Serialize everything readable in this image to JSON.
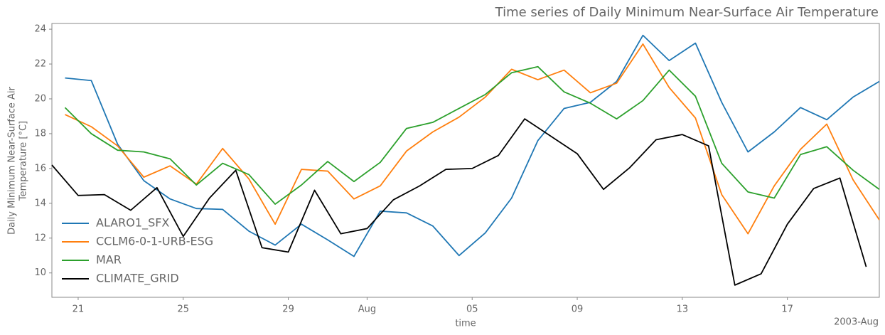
{
  "chart_data": {
    "type": "line",
    "title": "Time series of Daily Minimum Near-Surface Air Temperature",
    "xlabel": "time",
    "ylabel": [
      "Daily Minimum Near-Surface Air",
      "Temperature [°C]"
    ],
    "x_offset_label": "2003-Aug",
    "xlim": [
      "2003-07-20T00:00",
      "2003-08-20T12:00"
    ],
    "xticks": [
      {
        "value": "2003-07-21T00:00",
        "label": "21"
      },
      {
        "value": "2003-07-25T00:00",
        "label": "25"
      },
      {
        "value": "2003-07-29T00:00",
        "label": "29"
      },
      {
        "value": "2003-08-01T00:00",
        "label": "Aug"
      },
      {
        "value": "2003-08-05T00:00",
        "label": "05"
      },
      {
        "value": "2003-08-09T00:00",
        "label": "09"
      },
      {
        "value": "2003-08-13T00:00",
        "label": "13"
      },
      {
        "value": "2003-08-17T00:00",
        "label": "17"
      }
    ],
    "ylim": [
      8.6,
      24.33
    ],
    "yticks": [
      10,
      12,
      14,
      16,
      18,
      20,
      22,
      24
    ],
    "grid": false,
    "legend": "lower left",
    "series": [
      {
        "name": "ALARO1_SFX",
        "color": "#1f77b4",
        "x": [
          "2003-07-20T12:00",
          "2003-07-21T12:00",
          "2003-07-22T12:00",
          "2003-07-23T12:00",
          "2003-07-24T12:00",
          "2003-07-25T12:00",
          "2003-07-26T12:00",
          "2003-07-27T12:00",
          "2003-07-28T12:00",
          "2003-07-29T12:00",
          "2003-07-30T12:00",
          "2003-07-31T12:00",
          "2003-08-01T12:00",
          "2003-08-02T12:00",
          "2003-08-03T12:00",
          "2003-08-04T12:00",
          "2003-08-05T12:00",
          "2003-08-06T12:00",
          "2003-08-07T12:00",
          "2003-08-08T12:00",
          "2003-08-09T12:00",
          "2003-08-10T12:00",
          "2003-08-11T12:00",
          "2003-08-12T12:00",
          "2003-08-13T12:00",
          "2003-08-14T12:00",
          "2003-08-15T12:00",
          "2003-08-16T12:00",
          "2003-08-17T12:00",
          "2003-08-18T12:00",
          "2003-08-19T12:00",
          "2003-08-20T12:00"
        ],
        "values": [
          21.2,
          21.05,
          17.4,
          15.3,
          14.25,
          13.7,
          13.65,
          12.4,
          11.6,
          12.8,
          11.9,
          10.95,
          13.55,
          13.45,
          12.7,
          11.0,
          12.3,
          14.3,
          17.6,
          19.45,
          19.8,
          21.0,
          23.65,
          22.2,
          23.2,
          19.8,
          16.95,
          18.1,
          19.5,
          18.8,
          20.1,
          21.0
        ]
      },
      {
        "name": "CCLM6-0-1-URB-ESG",
        "color": "#ff7f0e",
        "x": [
          "2003-07-20T12:00",
          "2003-07-21T12:00",
          "2003-07-22T12:00",
          "2003-07-23T12:00",
          "2003-07-24T12:00",
          "2003-07-25T12:00",
          "2003-07-26T12:00",
          "2003-07-27T12:00",
          "2003-07-28T12:00",
          "2003-07-29T12:00",
          "2003-07-30T12:00",
          "2003-07-31T12:00",
          "2003-08-01T12:00",
          "2003-08-02T12:00",
          "2003-08-03T12:00",
          "2003-08-04T12:00",
          "2003-08-05T12:00",
          "2003-08-06T12:00",
          "2003-08-07T12:00",
          "2003-08-08T12:00",
          "2003-08-09T12:00",
          "2003-08-10T12:00",
          "2003-08-11T12:00",
          "2003-08-12T12:00",
          "2003-08-13T12:00",
          "2003-08-14T12:00",
          "2003-08-15T12:00",
          "2003-08-16T12:00",
          "2003-08-17T12:00",
          "2003-08-18T12:00",
          "2003-08-19T12:00",
          "2003-08-20T12:00"
        ],
        "values": [
          19.1,
          18.4,
          17.3,
          15.5,
          16.15,
          15.1,
          17.15,
          15.4,
          12.8,
          15.95,
          15.85,
          14.25,
          15.0,
          17.0,
          18.1,
          18.95,
          20.1,
          21.7,
          21.1,
          21.65,
          20.35,
          20.9,
          23.15,
          20.65,
          18.9,
          14.5,
          12.25,
          15.0,
          17.1,
          18.55,
          15.35,
          13.05
        ]
      },
      {
        "name": "MAR",
        "color": "#2ca02c",
        "x": [
          "2003-07-20T12:00",
          "2003-07-21T12:00",
          "2003-07-22T12:00",
          "2003-07-23T12:00",
          "2003-07-24T12:00",
          "2003-07-25T12:00",
          "2003-07-26T12:00",
          "2003-07-27T12:00",
          "2003-07-28T12:00",
          "2003-07-29T12:00",
          "2003-07-30T12:00",
          "2003-07-31T12:00",
          "2003-08-01T12:00",
          "2003-08-02T12:00",
          "2003-08-03T12:00",
          "2003-08-04T12:00",
          "2003-08-05T12:00",
          "2003-08-06T12:00",
          "2003-08-07T12:00",
          "2003-08-08T12:00",
          "2003-08-09T12:00",
          "2003-08-10T12:00",
          "2003-08-11T12:00",
          "2003-08-12T12:00",
          "2003-08-13T12:00",
          "2003-08-14T12:00",
          "2003-08-15T12:00",
          "2003-08-16T12:00",
          "2003-08-17T12:00",
          "2003-08-18T12:00",
          "2003-08-19T12:00",
          "2003-08-20T12:00"
        ],
        "values": [
          19.5,
          18.0,
          17.05,
          16.95,
          16.55,
          15.05,
          16.3,
          15.65,
          13.95,
          15.05,
          16.4,
          15.25,
          16.35,
          18.3,
          18.65,
          19.45,
          20.25,
          21.5,
          21.85,
          20.4,
          19.75,
          18.85,
          19.9,
          21.65,
          20.15,
          16.3,
          14.65,
          14.3,
          16.8,
          17.25,
          15.9,
          14.8
        ]
      },
      {
        "name": "CLIMATE_GRID",
        "color": "#000000",
        "x": [
          "2003-07-20T00:00",
          "2003-07-21T00:00",
          "2003-07-22T00:00",
          "2003-07-23T00:00",
          "2003-07-24T00:00",
          "2003-07-25T00:00",
          "2003-07-26T00:00",
          "2003-07-27T00:00",
          "2003-07-28T00:00",
          "2003-07-29T00:00",
          "2003-07-30T00:00",
          "2003-07-31T00:00",
          "2003-08-01T00:00",
          "2003-08-02T00:00",
          "2003-08-03T00:00",
          "2003-08-04T00:00",
          "2003-08-05T00:00",
          "2003-08-06T00:00",
          "2003-08-07T00:00",
          "2003-08-08T00:00",
          "2003-08-09T00:00",
          "2003-08-10T00:00",
          "2003-08-11T00:00",
          "2003-08-12T00:00",
          "2003-08-13T00:00",
          "2003-08-14T00:00",
          "2003-08-15T00:00",
          "2003-08-16T00:00",
          "2003-08-17T00:00",
          "2003-08-18T00:00",
          "2003-08-19T00:00",
          "2003-08-20T00:00"
        ],
        "values": [
          16.2,
          14.45,
          14.5,
          13.6,
          14.9,
          12.1,
          14.3,
          15.9,
          11.45,
          11.2,
          14.75,
          12.25,
          12.55,
          14.2,
          15.0,
          15.95,
          16.0,
          16.75,
          18.85,
          17.85,
          16.85,
          14.8,
          16.05,
          17.65,
          17.95,
          17.3,
          9.3,
          9.95,
          12.8,
          14.85,
          15.45,
          10.35
        ]
      }
    ]
  }
}
